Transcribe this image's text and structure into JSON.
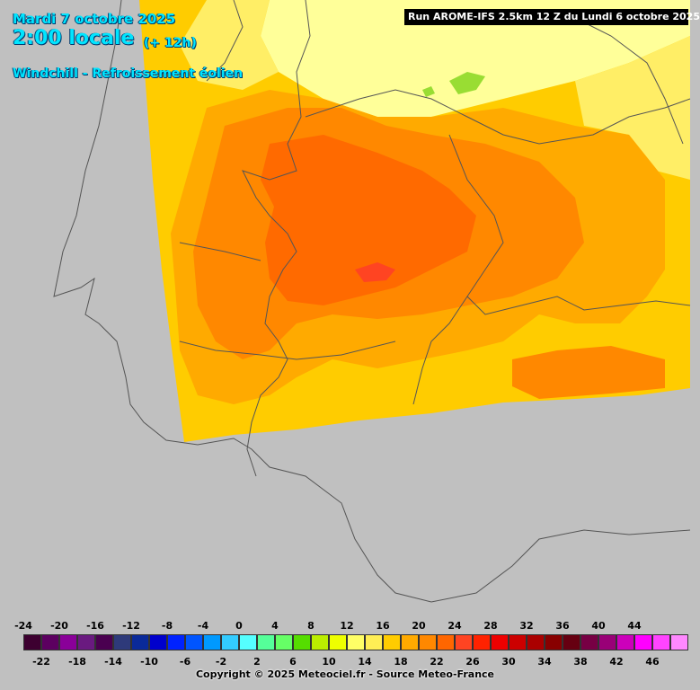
{
  "header": {
    "date": "Mardi 7 octobre 2025",
    "time": "2:00 locale",
    "offset": "(+ 12h)",
    "parameter": "Windchill - Refroissement éolien"
  },
  "run_label": "Run AROME-IFS 2.5km 12 Z du Lundi 6 octobre 2025",
  "copyright": "Copyright © 2025 Meteociel.fr - Source Meteo-France",
  "colors": {
    "background": "#c0c0c0",
    "borders": "#555555",
    "c12": "#ffff99",
    "c14": "#ffee66",
    "c16": "#ffcc00",
    "c18": "#ffaa00",
    "c20": "#ff8800",
    "c22": "#ff6a00",
    "c24": "#ff4422",
    "green": "#99dd33"
  },
  "legend": {
    "top_labels": [
      "-24",
      "-20",
      "-16",
      "-12",
      "-8",
      "-4",
      "0",
      "4",
      "8",
      "12",
      "16",
      "20",
      "24",
      "28",
      "32",
      "36",
      "40",
      "44"
    ],
    "bottom_labels": [
      "-22",
      "-18",
      "-14",
      "-10",
      "-6",
      "-2",
      "2",
      "6",
      "10",
      "14",
      "18",
      "22",
      "26",
      "30",
      "34",
      "38",
      "42",
      "46"
    ],
    "colors": [
      "#3d0030",
      "#5c0060",
      "#8a0099",
      "#6a1a80",
      "#4a0050",
      "#2e3a7a",
      "#0a2a99",
      "#0000cc",
      "#0022ff",
      "#0055ff",
      "#0099ff",
      "#33ccff",
      "#55ffff",
      "#55ff99",
      "#66ff66",
      "#55dd00",
      "#bbee00",
      "#eeff00",
      "#ffff66",
      "#ffee55",
      "#ffcc00",
      "#ffaa00",
      "#ff8800",
      "#ff6600",
      "#ff4422",
      "#ff2200",
      "#ee0000",
      "#cc0000",
      "#aa0000",
      "#880000",
      "#660011",
      "#770044",
      "#990077",
      "#cc00bb",
      "#ff00ff",
      "#ff44ff",
      "#ff88ff"
    ]
  }
}
